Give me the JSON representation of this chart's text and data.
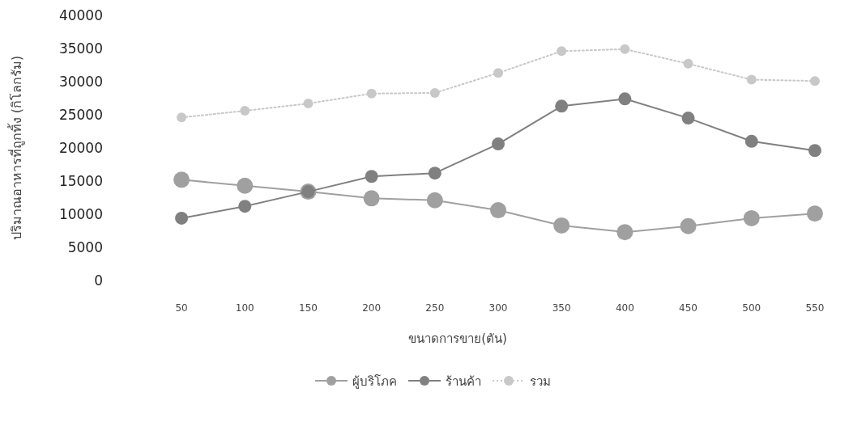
{
  "chart_data": {
    "type": "line",
    "xlabel": "ขนาดการขาย(ตัน)",
    "ylabel": "ปริมาณอาหารที่ถูกทิ้ง (กิโลกรัม)",
    "categories": [
      "50",
      "100",
      "150",
      "200",
      "250",
      "300",
      "350",
      "400",
      "450",
      "500",
      "550"
    ],
    "ylim": [
      0,
      40000
    ],
    "yticks": [
      0,
      5000,
      10000,
      15000,
      20000,
      25000,
      30000,
      35000,
      40000
    ],
    "grid": false,
    "legend": "bottom",
    "marker": "circle",
    "series": [
      {
        "name": "ผู้บริโภค",
        "color": "#a0a0a0",
        "line_style": "solid",
        "values": [
          15200,
          14300,
          13400,
          12400,
          12100,
          10600,
          8300,
          7300,
          8200,
          9400,
          10100
        ]
      },
      {
        "name": "ร้านค้า",
        "color": "#808080",
        "line_style": "solid",
        "values": [
          9400,
          11200,
          13400,
          15700,
          16200,
          20600,
          26300,
          27400,
          24500,
          21000,
          19600
        ]
      },
      {
        "name": "รวม",
        "color": "#c8c8c8",
        "line_style": "dotted",
        "values": [
          24600,
          25600,
          26700,
          28200,
          28300,
          31300,
          34600,
          34900,
          32700,
          30300,
          30100
        ]
      }
    ]
  }
}
